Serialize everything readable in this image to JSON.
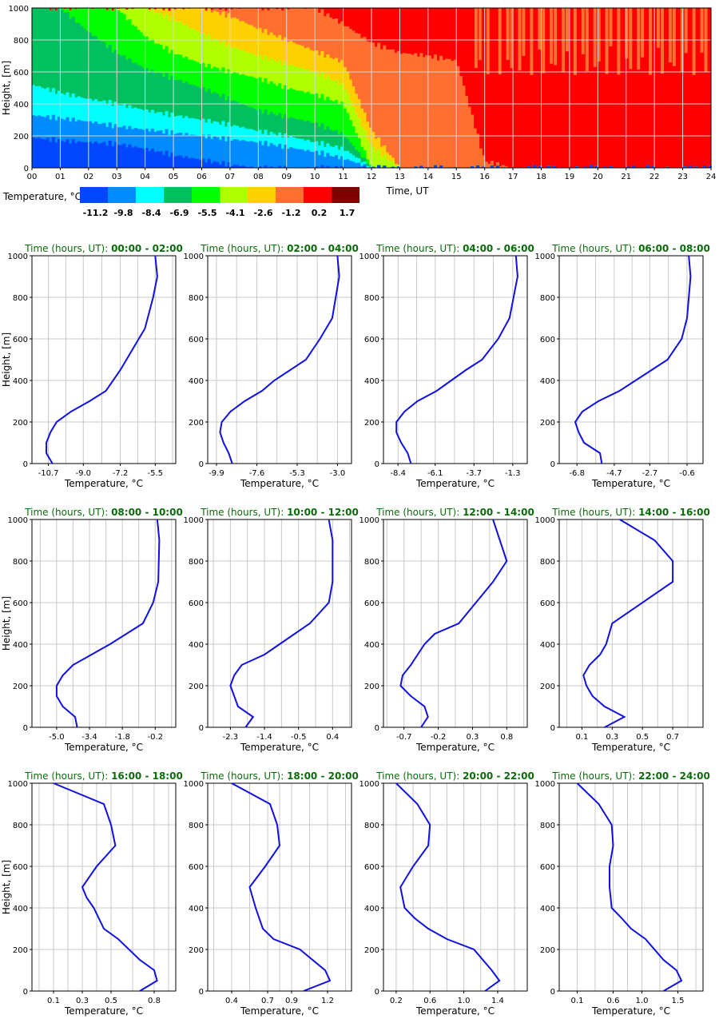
{
  "chart_data": [
    {
      "type": "heatmap",
      "title": "",
      "xlabel": "Time, UT",
      "ylabel": "Height, [m]",
      "x_ticks": [
        "00",
        "01",
        "02",
        "03",
        "04",
        "05",
        "06",
        "07",
        "08",
        "09",
        "10",
        "11",
        "12",
        "13",
        "14",
        "15",
        "16",
        "17",
        "18",
        "19",
        "20",
        "21",
        "22",
        "23",
        "24"
      ],
      "y_ticks": [
        "0",
        "200",
        "400",
        "600",
        "800",
        "1000"
      ],
      "xlim": [
        0,
        24
      ],
      "ylim": [
        0,
        1000
      ],
      "grid": true,
      "colorbar": {
        "label": "Temperature, °C",
        "ticks": [
          "-11.2",
          "-9.8",
          "-8.4",
          "-6.9",
          "-5.5",
          "-4.1",
          "-2.6",
          "-1.2",
          "0.2",
          "1.7"
        ],
        "colors": [
          "#0047ff",
          "#008cff",
          "#00ffff",
          "#00c060",
          "#00ff00",
          "#b0ff00",
          "#ffd000",
          "#ff7030",
          "#ff0000",
          "#800000"
        ]
      },
      "boundaries_note_free": true,
      "class_boundaries": [
        {
          "x": [
            0,
            1,
            2,
            3,
            4,
            5,
            6,
            7,
            8,
            9,
            10,
            11,
            12,
            13,
            14,
            15,
            16,
            17,
            18,
            19,
            20,
            21,
            22,
            23,
            24
          ],
          "class_below_to_above": "see values"
        }
      ],
      "values_by_hour": {
        "hours": [
          0,
          1,
          2,
          3,
          4,
          5,
          6,
          7,
          8,
          9,
          10,
          11,
          12,
          13,
          14,
          15,
          16,
          17,
          18,
          19,
          20,
          21,
          22,
          23,
          24
        ],
        "top_of_class_0": [
          190,
          170,
          160,
          150,
          120,
          80,
          50,
          20,
          0,
          0,
          0,
          0,
          0,
          0,
          0,
          0,
          0,
          0,
          0,
          0,
          0,
          0,
          0,
          0,
          0
        ],
        "top_of_class_1": [
          330,
          310,
          290,
          260,
          240,
          220,
          200,
          180,
          160,
          130,
          100,
          60,
          0,
          0,
          0,
          0,
          0,
          0,
          0,
          0,
          0,
          0,
          0,
          0,
          0
        ],
        "top_of_class_2": [
          520,
          470,
          430,
          400,
          360,
          330,
          300,
          270,
          230,
          200,
          160,
          120,
          0,
          0,
          0,
          0,
          0,
          0,
          0,
          0,
          0,
          0,
          0,
          0,
          0
        ],
        "top_of_class_3": [
          1000,
          1000,
          850,
          720,
          620,
          560,
          500,
          430,
          360,
          320,
          280,
          210,
          0,
          0,
          0,
          0,
          0,
          0,
          0,
          0,
          0,
          0,
          0,
          0,
          0
        ],
        "top_of_class_4": [
          1000,
          1000,
          1000,
          1000,
          820,
          720,
          650,
          600,
          560,
          500,
          460,
          400,
          0,
          0,
          0,
          0,
          0,
          0,
          0,
          0,
          0,
          0,
          0,
          0,
          0
        ],
        "top_of_class_5": [
          1000,
          1000,
          1000,
          1000,
          1000,
          930,
          840,
          760,
          700,
          650,
          600,
          520,
          130,
          0,
          0,
          0,
          0,
          0,
          0,
          0,
          0,
          0,
          0,
          0,
          0
        ],
        "top_of_class_6": [
          1000,
          1000,
          1000,
          1000,
          1000,
          1000,
          1000,
          950,
          870,
          800,
          730,
          660,
          230,
          0,
          0,
          0,
          0,
          0,
          0,
          0,
          0,
          0,
          0,
          0,
          0
        ],
        "top_of_class_7": [
          1000,
          1000,
          1000,
          1000,
          1000,
          1000,
          1000,
          1000,
          1000,
          1000,
          1000,
          900,
          780,
          720,
          700,
          670,
          40,
          0,
          0,
          0,
          0,
          0,
          0,
          0,
          0
        ]
      },
      "legend": "bottom-left"
    },
    {
      "type": "line",
      "title_prefix": "Time (hours, UT): ",
      "title_range": "00:00 - 02:00",
      "xlabel": "Temperature, °C",
      "ylabel": "Height, [m]",
      "xlim": [
        -11.5,
        -4.5
      ],
      "x_ticks": [
        -10.7,
        -9.0,
        -7.2,
        -5.5
      ],
      "x_tick_labels": [
        "-10.7",
        "-9.0",
        "-7.2",
        "-5.5"
      ],
      "ylim": [
        0,
        1000
      ],
      "y_ticks": [
        0,
        200,
        400,
        600,
        800,
        1000
      ],
      "grid": true,
      "series": [
        {
          "x": [
            -10.5,
            -10.8,
            -10.8,
            -10.6,
            -10.3,
            -9.6,
            -8.7,
            -7.9,
            -7.2,
            -6.6,
            -6.0,
            -5.6,
            -5.4,
            -5.5
          ],
          "y": [
            0,
            50,
            100,
            150,
            200,
            250,
            300,
            350,
            450,
            550,
            650,
            800,
            900,
            1000
          ]
        }
      ]
    },
    {
      "type": "line",
      "title_prefix": "Time (hours, UT): ",
      "title_range": "02:00 - 04:00",
      "xlabel": "Temperature, °C",
      "ylabel": "",
      "xlim": [
        -10.4,
        -2.2
      ],
      "x_ticks": [
        -9.9,
        -7.6,
        -5.3,
        -3.0
      ],
      "x_tick_labels": [
        "-9.9",
        "-7.6",
        "-5.3",
        "-3.0"
      ],
      "ylim": [
        0,
        1000
      ],
      "y_ticks": [
        0,
        200,
        400,
        600,
        800,
        1000
      ],
      "grid": true,
      "series": [
        {
          "x": [
            -9.0,
            -9.2,
            -9.5,
            -9.7,
            -9.6,
            -9.1,
            -8.3,
            -7.3,
            -6.6,
            -5.7,
            -4.8,
            -4.0,
            -3.3,
            -2.9,
            -3.0
          ],
          "y": [
            0,
            50,
            100,
            150,
            200,
            250,
            300,
            350,
            400,
            450,
            500,
            600,
            700,
            900,
            1000
          ]
        }
      ]
    },
    {
      "type": "line",
      "title_prefix": "Time (hours, UT): ",
      "title_range": "04:00 - 06:00",
      "xlabel": "Temperature, °C",
      "ylabel": "",
      "xlim": [
        -9.3,
        -0.4
      ],
      "x_ticks": [
        -8.4,
        -6.1,
        -3.7,
        -1.3
      ],
      "x_tick_labels": [
        "-8.4",
        "-6.1",
        "-3.7",
        "-1.3"
      ],
      "ylim": [
        0,
        1000
      ],
      "y_ticks": [
        0,
        200,
        400,
        600,
        800,
        1000
      ],
      "grid": true,
      "series": [
        {
          "x": [
            -7.6,
            -7.8,
            -8.2,
            -8.5,
            -8.5,
            -8.0,
            -7.2,
            -6.0,
            -5.1,
            -4.2,
            -3.2,
            -2.2,
            -1.5,
            -1.0,
            -1.1
          ],
          "y": [
            0,
            50,
            100,
            150,
            200,
            250,
            300,
            350,
            400,
            450,
            500,
            600,
            700,
            900,
            1000
          ]
        }
      ]
    },
    {
      "type": "line",
      "title_prefix": "Time (hours, UT): ",
      "title_range": "06:00 - 08:00",
      "xlabel": "Temperature, °C",
      "ylabel": "",
      "xlim": [
        -7.8,
        0.3
      ],
      "x_ticks": [
        -6.8,
        -4.7,
        -2.7,
        -0.6
      ],
      "x_tick_labels": [
        "-6.8",
        "-4.7",
        "-2.7",
        "-0.6"
      ],
      "ylim": [
        0,
        1000
      ],
      "y_ticks": [
        0,
        200,
        400,
        600,
        800,
        1000
      ],
      "grid": true,
      "series": [
        {
          "x": [
            -5.4,
            -5.5,
            -6.4,
            -6.7,
            -6.9,
            -6.5,
            -5.6,
            -4.4,
            -3.5,
            -2.6,
            -1.7,
            -0.9,
            -0.6,
            -0.4,
            -0.5
          ],
          "y": [
            0,
            50,
            100,
            150,
            200,
            250,
            300,
            350,
            400,
            450,
            500,
            600,
            700,
            900,
            1000
          ]
        }
      ]
    },
    {
      "type": "line",
      "title_prefix": "Time (hours, UT): ",
      "title_range": "08:00 - 10:00",
      "xlabel": "Temperature, °C",
      "ylabel": "Height, [m]",
      "xlim": [
        -6.2,
        0.8
      ],
      "x_ticks": [
        -5.0,
        -3.4,
        -1.8,
        -0.2
      ],
      "x_tick_labels": [
        "-5.0",
        "-3.4",
        "-1.8",
        "-0.2"
      ],
      "ylim": [
        0,
        1000
      ],
      "y_ticks": [
        0,
        200,
        400,
        600,
        800,
        1000
      ],
      "grid": true,
      "series": [
        {
          "x": [
            -4.0,
            -4.1,
            -4.7,
            -5.0,
            -5.0,
            -4.7,
            -4.2,
            -3.3,
            -2.4,
            -1.6,
            -0.8,
            -0.3,
            -0.05,
            0.0,
            -0.1
          ],
          "y": [
            0,
            50,
            100,
            150,
            200,
            250,
            300,
            350,
            400,
            450,
            500,
            600,
            700,
            900,
            1000
          ]
        }
      ]
    },
    {
      "type": "line",
      "title_prefix": "Time (hours, UT): ",
      "title_range": "10:00 - 12:00",
      "xlabel": "Temperature, °C",
      "ylabel": "",
      "xlim": [
        -2.9,
        0.9
      ],
      "x_ticks": [
        -2.3,
        -1.4,
        -0.5,
        0.4
      ],
      "x_tick_labels": [
        "-2.3",
        "-1.4",
        "-0.5",
        "0.4"
      ],
      "ylim": [
        0,
        1000
      ],
      "y_ticks": [
        0,
        200,
        400,
        600,
        800,
        1000
      ],
      "grid": true,
      "series": [
        {
          "x": [
            -1.9,
            -1.7,
            -2.1,
            -2.2,
            -2.3,
            -2.2,
            -2.0,
            -1.4,
            -1.0,
            -0.6,
            -0.2,
            0.3,
            0.4,
            0.4,
            0.3
          ],
          "y": [
            0,
            50,
            100,
            150,
            200,
            250,
            300,
            350,
            400,
            450,
            500,
            600,
            700,
            900,
            1000
          ]
        }
      ]
    },
    {
      "type": "line",
      "title_prefix": "Time (hours, UT): ",
      "title_range": "12:00 - 14:00",
      "xlabel": "Temperature, °C",
      "ylabel": "",
      "xlim": [
        -1.0,
        1.1
      ],
      "x_ticks": [
        -0.7,
        -0.2,
        0.3,
        0.8
      ],
      "x_tick_labels": [
        "-0.7",
        "-0.2",
        "0.3",
        "0.8"
      ],
      "ylim": [
        0,
        1000
      ],
      "y_ticks": [
        0,
        200,
        400,
        600,
        800,
        1000
      ],
      "grid": true,
      "series": [
        {
          "x": [
            -0.45,
            -0.35,
            -0.4,
            -0.6,
            -0.75,
            -0.72,
            -0.6,
            -0.4,
            -0.25,
            0.1,
            0.6,
            0.8,
            0.7,
            0.6
          ],
          "y": [
            0,
            50,
            100,
            150,
            200,
            250,
            300,
            400,
            450,
            500,
            700,
            800,
            900,
            1000
          ]
        }
      ]
    },
    {
      "type": "line",
      "title_prefix": "Time (hours, UT): ",
      "title_range": "14:00 - 16:00",
      "xlabel": "Temperature, °C",
      "ylabel": "",
      "xlim": [
        -0.05,
        0.9
      ],
      "x_ticks": [
        0.1,
        0.3,
        0.5,
        0.7
      ],
      "x_tick_labels": [
        "0.1",
        "0.3",
        "0.5",
        "0.7"
      ],
      "ylim": [
        0,
        1000
      ],
      "y_ticks": [
        0,
        200,
        400,
        600,
        800,
        1000
      ],
      "grid": true,
      "series": [
        {
          "x": [
            0.25,
            0.38,
            0.25,
            0.17,
            0.13,
            0.11,
            0.15,
            0.22,
            0.26,
            0.3,
            0.7,
            0.7,
            0.58,
            0.35
          ],
          "y": [
            0,
            50,
            100,
            150,
            200,
            250,
            300,
            350,
            400,
            500,
            700,
            800,
            900,
            1000
          ]
        }
      ]
    },
    {
      "type": "line",
      "title_prefix": "Time (hours, UT): ",
      "title_range": "16:00 - 18:00",
      "xlabel": "Temperature, °C",
      "ylabel": "Height, [m]",
      "xlim": [
        -0.05,
        0.95
      ],
      "x_ticks": [
        0.1,
        0.3,
        0.5,
        0.8
      ],
      "x_tick_labels": [
        "0.1",
        "0.3",
        "0.5",
        "0.8"
      ],
      "ylim": [
        0,
        1000
      ],
      "y_ticks": [
        0,
        200,
        400,
        600,
        800,
        1000
      ],
      "grid": true,
      "series": [
        {
          "x": [
            0.7,
            0.82,
            0.8,
            0.7,
            0.55,
            0.45,
            0.38,
            0.33,
            0.3,
            0.4,
            0.53,
            0.5,
            0.45,
            0.1
          ],
          "y": [
            0,
            50,
            100,
            150,
            250,
            300,
            400,
            450,
            500,
            600,
            700,
            800,
            900,
            1000
          ]
        }
      ]
    },
    {
      "type": "line",
      "title_prefix": "Time (hours, UT): ",
      "title_range": "18:00 - 20:00",
      "xlabel": "Temperature, °C",
      "ylabel": "",
      "xlim": [
        0.2,
        1.4
      ],
      "x_ticks": [
        0.4,
        0.7,
        0.9,
        1.2
      ],
      "x_tick_labels": [
        "0.4",
        "0.7",
        "0.9",
        "1.2"
      ],
      "ylim": [
        0,
        1000
      ],
      "y_ticks": [
        0,
        200,
        400,
        600,
        800,
        1000
      ],
      "grid": true,
      "series": [
        {
          "x": [
            1.0,
            1.22,
            1.18,
            0.97,
            0.75,
            0.66,
            0.6,
            0.55,
            0.68,
            0.8,
            0.78,
            0.72,
            0.4
          ],
          "y": [
            0,
            50,
            100,
            200,
            250,
            300,
            400,
            500,
            600,
            700,
            800,
            900,
            1000
          ]
        }
      ]
    },
    {
      "type": "line",
      "title_prefix": "Time (hours, UT): ",
      "title_range": "20:00 - 22:00",
      "xlabel": "Temperature, °C",
      "ylabel": "",
      "xlim": [
        0.05,
        1.75
      ],
      "x_ticks": [
        0.2,
        0.6,
        1.0,
        1.4
      ],
      "x_tick_labels": [
        "0.2",
        "0.6",
        "1.0",
        "1.4"
      ],
      "ylim": [
        0,
        1000
      ],
      "y_ticks": [
        0,
        200,
        400,
        600,
        800,
        1000
      ],
      "grid": true,
      "series": [
        {
          "x": [
            1.25,
            1.42,
            1.33,
            1.12,
            0.8,
            0.58,
            0.42,
            0.3,
            0.25,
            0.4,
            0.58,
            0.6,
            0.45,
            0.2
          ],
          "y": [
            0,
            50,
            100,
            200,
            250,
            300,
            350,
            400,
            500,
            600,
            700,
            800,
            900,
            1000
          ]
        }
      ]
    },
    {
      "type": "line",
      "title_prefix": "Time (hours, UT): ",
      "title_range": "22:00 - 24:00",
      "xlabel": "Temperature, °C",
      "ylabel": "",
      "xlim": [
        -0.15,
        1.85
      ],
      "x_ticks": [
        0.1,
        0.6,
        1.0,
        1.5
      ],
      "x_tick_labels": [
        "0.1",
        "0.6",
        "1.0",
        "1.5"
      ],
      "ylim": [
        0,
        1000
      ],
      "y_ticks": [
        0,
        200,
        400,
        600,
        800,
        1000
      ],
      "grid": true,
      "series": [
        {
          "x": [
            1.3,
            1.55,
            1.48,
            1.3,
            1.05,
            0.85,
            0.72,
            0.58,
            0.55,
            0.55,
            0.6,
            0.58,
            0.4,
            0.1
          ],
          "y": [
            0,
            50,
            100,
            150,
            250,
            300,
            350,
            400,
            500,
            600,
            700,
            800,
            900,
            1000
          ]
        }
      ]
    }
  ]
}
